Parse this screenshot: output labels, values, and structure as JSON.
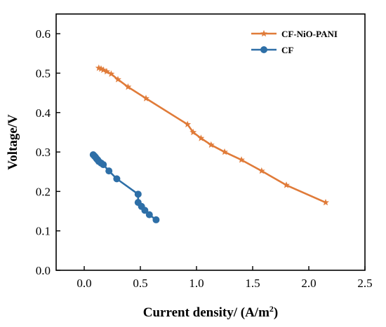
{
  "chart_data": {
    "type": "line",
    "title": "",
    "xlabel": "Current density/ (A/m",
    "xlabel_sup": "2",
    "xlabel_end": ")",
    "ylabel": "Voltage/V",
    "xlim": [
      -0.25,
      2.5
    ],
    "ylim": [
      0.0,
      0.65
    ],
    "xticks": [
      0.0,
      0.5,
      1.0,
      1.5,
      2.0,
      2.5
    ],
    "xtick_labels": [
      "0.0",
      "0.5",
      "1.0",
      "1.5",
      "2.0",
      "2.5"
    ],
    "yticks": [
      0.0,
      0.1,
      0.2,
      0.3,
      0.4,
      0.5,
      0.6
    ],
    "ytick_labels": [
      "0.0",
      "0.1",
      "0.2",
      "0.3",
      "0.4",
      "0.5",
      "0.6"
    ],
    "grid": false,
    "legend_position": "top-right",
    "series": [
      {
        "name": "CF-NiO-PANI",
        "color": "#E07B39",
        "marker": "star",
        "x": [
          0.13,
          0.15,
          0.17,
          0.2,
          0.24,
          0.3,
          0.39,
          0.55,
          0.92,
          0.97,
          1.04,
          1.13,
          1.25,
          1.4,
          1.58,
          1.8,
          2.15
        ],
        "y": [
          0.513,
          0.511,
          0.508,
          0.504,
          0.498,
          0.484,
          0.465,
          0.436,
          0.37,
          0.35,
          0.335,
          0.318,
          0.3,
          0.28,
          0.252,
          0.216,
          0.172
        ]
      },
      {
        "name": "CF",
        "color": "#2E6FA7",
        "marker": "circle",
        "x": [
          0.08,
          0.09,
          0.1,
          0.11,
          0.12,
          0.13,
          0.15,
          0.17,
          0.22,
          0.29,
          0.48,
          0.48,
          0.51,
          0.54,
          0.58,
          0.64
        ],
        "y": [
          0.293,
          0.29,
          0.287,
          0.283,
          0.28,
          0.276,
          0.272,
          0.268,
          0.252,
          0.232,
          0.193,
          0.172,
          0.162,
          0.152,
          0.141,
          0.128
        ]
      }
    ]
  }
}
